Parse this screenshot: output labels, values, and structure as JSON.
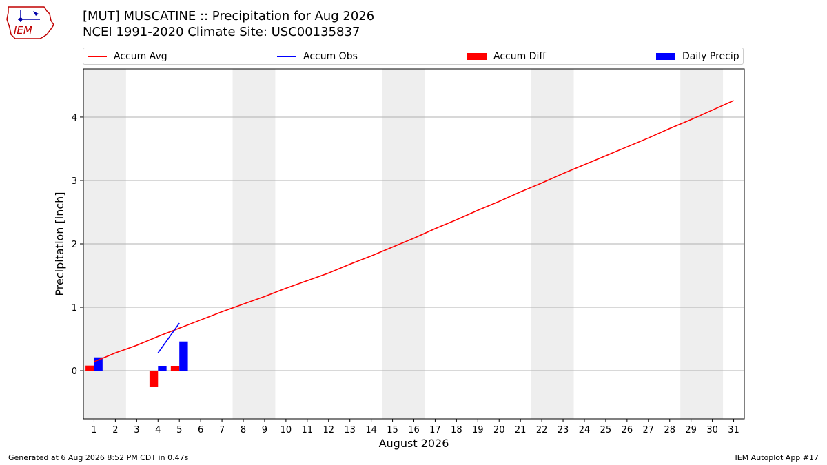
{
  "header": {
    "logo_text": "IEM",
    "title_line1": "[MUT] MUSCATINE :: Precipitation for Aug 2026",
    "title_line2": "NCEI 1991-2020 Climate Site: USC00135837"
  },
  "legend": {
    "items": [
      {
        "label": "Accum Avg",
        "kind": "line",
        "color": "#ff0000"
      },
      {
        "label": "Accum Obs",
        "kind": "line",
        "color": "#0000ff"
      },
      {
        "label": "Accum Diff",
        "kind": "patch",
        "color": "#ff0000"
      },
      {
        "label": "Daily Precip",
        "kind": "patch",
        "color": "#0000ff"
      }
    ]
  },
  "footer": {
    "generated": "Generated at 6 Aug 2026 8:52 PM CDT in 0.47s",
    "app": "IEM Autoplot App #17"
  },
  "chart_data": {
    "type": "bar",
    "xlabel": "August 2026",
    "ylabel": "Precipitation [inch]",
    "xlim": [
      0.5,
      31.5
    ],
    "ylim": [
      -0.76,
      4.76
    ],
    "yticks": [
      0,
      1,
      2,
      3,
      4
    ],
    "x": [
      1,
      2,
      3,
      4,
      5,
      6,
      7,
      8,
      9,
      10,
      11,
      12,
      13,
      14,
      15,
      16,
      17,
      18,
      19,
      20,
      21,
      22,
      23,
      24,
      25,
      26,
      27,
      28,
      29,
      30,
      31
    ],
    "weekend_shading": [
      [
        0.5,
        2.5
      ],
      [
        7.5,
        9.5
      ],
      [
        14.5,
        16.5
      ],
      [
        21.5,
        23.5
      ],
      [
        28.5,
        30.5
      ]
    ],
    "shading_color": "#eeeeee",
    "grid": true,
    "series": [
      {
        "name": "Accum Avg",
        "kind": "line",
        "color": "#ff0000",
        "x": [
          1,
          2,
          3,
          4,
          5,
          6,
          7,
          8,
          9,
          10,
          11,
          12,
          13,
          14,
          15,
          16,
          17,
          18,
          19,
          20,
          21,
          22,
          23,
          24,
          25,
          26,
          27,
          28,
          29,
          30,
          31
        ],
        "values": [
          0.14,
          0.28,
          0.4,
          0.54,
          0.67,
          0.8,
          0.93,
          1.05,
          1.17,
          1.3,
          1.42,
          1.54,
          1.68,
          1.81,
          1.95,
          2.09,
          2.24,
          2.38,
          2.53,
          2.67,
          2.82,
          2.96,
          3.11,
          3.25,
          3.39,
          3.53,
          3.67,
          3.82,
          3.96,
          4.11,
          4.26
        ]
      },
      {
        "name": "Accum Obs",
        "kind": "line",
        "color": "#0000ff",
        "x": [
          4,
          5
        ],
        "values": [
          0.28,
          0.75
        ]
      },
      {
        "name": "Accum Diff",
        "kind": "bar",
        "color": "#ff0000",
        "x": [
          1,
          4,
          5
        ],
        "values": [
          0.08,
          -0.26,
          0.07
        ]
      },
      {
        "name": "Daily Precip",
        "kind": "bar",
        "color": "#0000ff",
        "x": [
          1,
          4,
          5
        ],
        "values": [
          0.21,
          0.07,
          0.46
        ]
      }
    ]
  }
}
